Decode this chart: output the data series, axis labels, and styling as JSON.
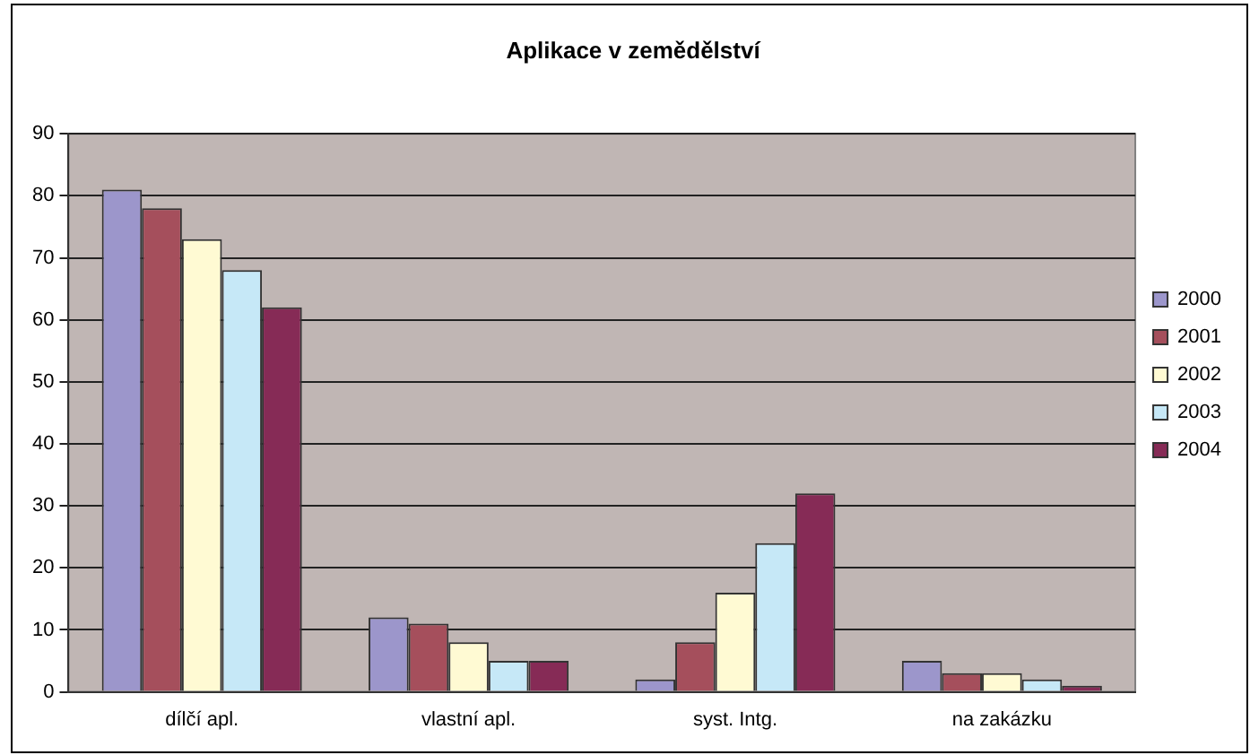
{
  "chart_data": {
    "type": "bar",
    "title": "Aplikace v zemědělství",
    "categories": [
      "dílčí apl.",
      "vlastní apl.",
      "syst. Intg.",
      "na zakázku"
    ],
    "series": [
      {
        "name": "2000",
        "color": "#9c96cb",
        "values": [
          81,
          12,
          2,
          5
        ]
      },
      {
        "name": "2001",
        "color": "#a54f5c",
        "values": [
          78,
          11,
          8,
          3
        ]
      },
      {
        "name": "2002",
        "color": "#fffad3",
        "values": [
          73,
          8,
          16,
          3
        ]
      },
      {
        "name": "2003",
        "color": "#c6e8f7",
        "values": [
          68,
          5,
          24,
          2
        ]
      },
      {
        "name": "2004",
        "color": "#862b56",
        "values": [
          62,
          5,
          32,
          1
        ]
      }
    ],
    "ylim": [
      0,
      90
    ],
    "yticks": [
      0,
      10,
      20,
      30,
      40,
      50,
      60,
      70,
      80,
      90
    ],
    "grid": "y",
    "legend": "right"
  }
}
